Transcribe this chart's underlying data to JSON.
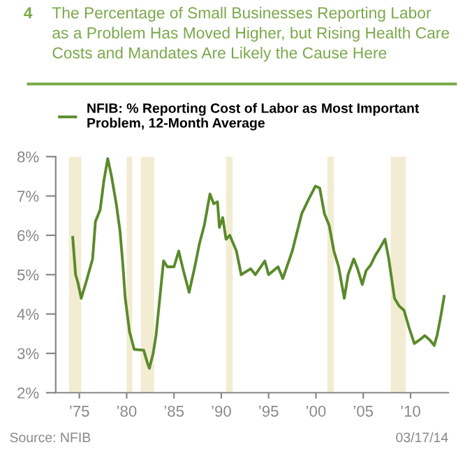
{
  "chart_data": {
    "type": "line",
    "title": "The Percentage of Small Businesses Reporting Labor\nas a Problem Has Moved Higher, but Rising Health Care\nCosts and Mandates Are Likely the Cause Here",
    "annotations": [
      "4",
      "Source: NFIB",
      "03/17/14"
    ],
    "series": [
      {
        "name": "NFIB: % Reporting Cost of Labor as Most Important\nProblem, 12-Month Average",
        "color": "#5a8a2a",
        "x": [
          1974.3,
          1974.6,
          1974.85,
          1975.2,
          1975.7,
          1976.4,
          1976.7,
          1977.2,
          1977.6,
          1978.0,
          1978.4,
          1978.9,
          1979.3,
          1979.6,
          1979.85,
          1980.3,
          1980.8,
          1981.8,
          1982.2,
          1982.4,
          1982.8,
          1983.1,
          1983.5,
          1983.9,
          1984.3,
          1985.0,
          1985.5,
          1986.0,
          1986.6,
          1987.2,
          1987.7,
          1988.2,
          1988.8,
          1989.2,
          1989.6,
          1989.8,
          1990.15,
          1990.5,
          1990.9,
          1991.6,
          1992.1,
          1993.1,
          1993.6,
          1994.6,
          1995.0,
          1996.0,
          1996.5,
          1997.5,
          1998.5,
          1999.2,
          1999.95,
          2000.4,
          2000.9,
          2001.4,
          2001.9,
          2002.4,
          2003.0,
          2003.4,
          2004.0,
          2004.4,
          2004.9,
          2005.3,
          2005.8,
          2006.3,
          2006.7,
          2007.3,
          2007.7,
          2008.3,
          2008.8,
          2009.3,
          2009.85,
          2010.4,
          2011.0,
          2011.5,
          2012.0,
          2012.5,
          2012.8,
          2013.2,
          2013.55
        ],
        "values": [
          5.95,
          5.0,
          4.8,
          4.4,
          4.8,
          5.4,
          6.35,
          6.65,
          7.4,
          7.95,
          7.5,
          6.8,
          6.1,
          5.25,
          4.4,
          3.55,
          3.1,
          3.08,
          2.75,
          2.62,
          3.0,
          3.45,
          4.4,
          5.35,
          5.2,
          5.2,
          5.6,
          5.1,
          4.55,
          5.2,
          5.8,
          6.25,
          7.05,
          6.8,
          6.85,
          6.2,
          6.45,
          5.9,
          6.0,
          5.6,
          5.0,
          5.15,
          5.0,
          5.35,
          5.0,
          5.2,
          4.9,
          5.6,
          6.55,
          6.9,
          7.25,
          7.2,
          6.55,
          6.25,
          5.6,
          5.2,
          4.4,
          5.0,
          5.4,
          5.15,
          4.75,
          5.1,
          5.25,
          5.5,
          5.65,
          5.9,
          5.4,
          4.4,
          4.2,
          4.1,
          3.65,
          3.25,
          3.35,
          3.45,
          3.35,
          3.2,
          3.45,
          3.95,
          4.45
        ]
      }
    ],
    "bands": [
      {
        "axis": "x",
        "from": 1973.9,
        "to": 1975.2,
        "color": "#f2ecd2"
      },
      {
        "axis": "x",
        "from": 1980.0,
        "to": 1980.6,
        "color": "#f2ecd2"
      },
      {
        "axis": "x",
        "from": 1981.5,
        "to": 1982.9,
        "color": "#f2ecd2"
      },
      {
        "axis": "x",
        "from": 1990.5,
        "to": 1991.2,
        "color": "#f2ecd2"
      },
      {
        "axis": "x",
        "from": 2001.2,
        "to": 2001.9,
        "color": "#f2ecd2"
      },
      {
        "axis": "x",
        "from": 2007.9,
        "to": 2009.5,
        "color": "#f2ecd2"
      }
    ],
    "xlim": [
      1972.5,
      2014
    ],
    "xticks": [
      {
        "value": 1975,
        "label": "’75"
      },
      {
        "value": 1980,
        "label": "’80"
      },
      {
        "value": 1985,
        "label": "’85"
      },
      {
        "value": 1990,
        "label": "’90"
      },
      {
        "value": 1995,
        "label": "’95"
      },
      {
        "value": 2000,
        "label": "’00"
      },
      {
        "value": 2005,
        "label": "’05"
      },
      {
        "value": 2010,
        "label": "’10"
      }
    ],
    "ylim": [
      2,
      8
    ],
    "yticks": [
      {
        "value": 2,
        "label": "2%"
      },
      {
        "value": 3,
        "label": "3%"
      },
      {
        "value": 4,
        "label": "4%"
      },
      {
        "value": 5,
        "label": "5%"
      },
      {
        "value": 6,
        "label": "6%"
      },
      {
        "value": 7,
        "label": "7%"
      },
      {
        "value": 8,
        "label": "8%"
      }
    ],
    "grid": false,
    "legend": "top left",
    "marker": "none",
    "line_style": "solid"
  }
}
